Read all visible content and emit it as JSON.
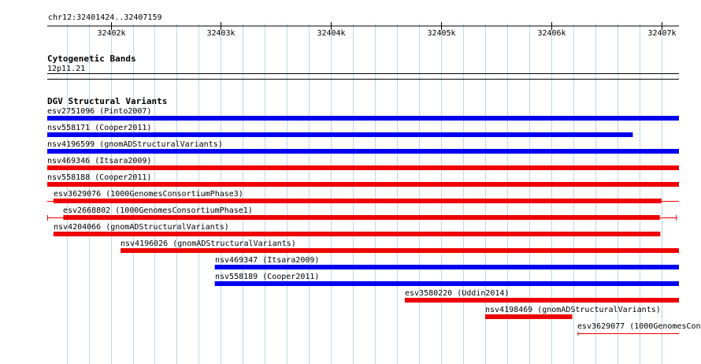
{
  "browser": {
    "location": "chr12:32401424..32407159",
    "range": [
      32401424,
      32407159
    ],
    "ticks": [
      {
        "pos": 32402000,
        "label": "32402k"
      },
      {
        "pos": 32403000,
        "label": "32403k"
      },
      {
        "pos": 32404000,
        "label": "32404k"
      },
      {
        "pos": 32405000,
        "label": "32405k"
      },
      {
        "pos": 32406000,
        "label": "32406k"
      },
      {
        "pos": 32407000,
        "label": "32407k"
      }
    ]
  },
  "tracks": {
    "cytoband": {
      "title": "Cytogenetic Bands",
      "band_label": "12p11.21"
    },
    "dgv": {
      "title": "DGV Structural Variants",
      "colors": {
        "gain": "#0000ee",
        "loss": "#ee0000",
        "complex": "#ee0000"
      },
      "features": [
        {
          "id": "esv2751096",
          "label": "esv2751096 (Pinto2007)",
          "start": 32401424,
          "end": 32407159,
          "type": "gain",
          "style": "thick",
          "clipped_right": true
        },
        {
          "id": "nsv558171",
          "label": "nsv558171 (Cooper2011)",
          "start": 32401424,
          "end": 32406740,
          "type": "gain",
          "style": "thick"
        },
        {
          "id": "nsv4196599",
          "label": "nsv4196599 (gnomADStructuralVariants)",
          "start": 32401424,
          "end": 32407159,
          "type": "gain",
          "style": "thick",
          "clipped_right": true
        },
        {
          "id": "nsv469346",
          "label": "nsv469346 (Itsara2009)",
          "start": 32401424,
          "end": 32407159,
          "type": "loss",
          "style": "thick",
          "clipped_right": true
        },
        {
          "id": "nsv558188",
          "label": "nsv558188 (Cooper2011)",
          "start": 32401424,
          "end": 32407159,
          "type": "loss",
          "style": "thick",
          "clipped_right": true
        },
        {
          "id": "esv3629076",
          "label": "esv3629076 (1000GenomesConsortiumPhase3)",
          "start": 32401480,
          "end": 32407000,
          "type": "loss",
          "style": "thick-ci",
          "ci_start": 32401424,
          "ci_end": 32407159
        },
        {
          "id": "esv2668802",
          "label": "esv2668802 (1000GenomesConsortiumPhase1)",
          "start": 32401570,
          "end": 32406985,
          "type": "loss",
          "style": "thick-ci",
          "ci_start": 32401424,
          "ci_end": 32407140,
          "ci_caps": true
        },
        {
          "id": "nsv4204066",
          "label": "nsv4204066 (gnomADStructuralVariants)",
          "start": 32401480,
          "end": 32406990,
          "type": "loss",
          "style": "thick"
        },
        {
          "id": "nsv4196026",
          "label": "nsv4196026 (gnomADStructuralVariants)",
          "start": 32402090,
          "end": 32407159,
          "type": "loss",
          "style": "thick",
          "clipped_right": true
        },
        {
          "id": "nsv469347",
          "label": "nsv469347 (Itsara2009)",
          "start": 32402945,
          "end": 32407159,
          "type": "gain",
          "style": "thick",
          "clipped_right": true
        },
        {
          "id": "nsv558189",
          "label": "nsv558189 (Cooper2011)",
          "start": 32402945,
          "end": 32407159,
          "type": "gain",
          "style": "thick",
          "clipped_right": true
        },
        {
          "id": "esv3580220",
          "label": "esv3580220 (Uddin2014)",
          "start": 32404670,
          "end": 32407159,
          "type": "loss",
          "style": "thick",
          "clipped_right": true
        },
        {
          "id": "nsv4198469",
          "label": "nsv4198469 (gnomADStructuralVariants)",
          "start": 32405400,
          "end": 32406190,
          "type": "loss",
          "style": "thick"
        },
        {
          "id": "esv3629077",
          "label": "esv3629077 (1000GenomesCons",
          "start": 32406240,
          "end": 32407159,
          "type": "loss",
          "style": "thin",
          "clipped_right": true
        }
      ]
    }
  }
}
